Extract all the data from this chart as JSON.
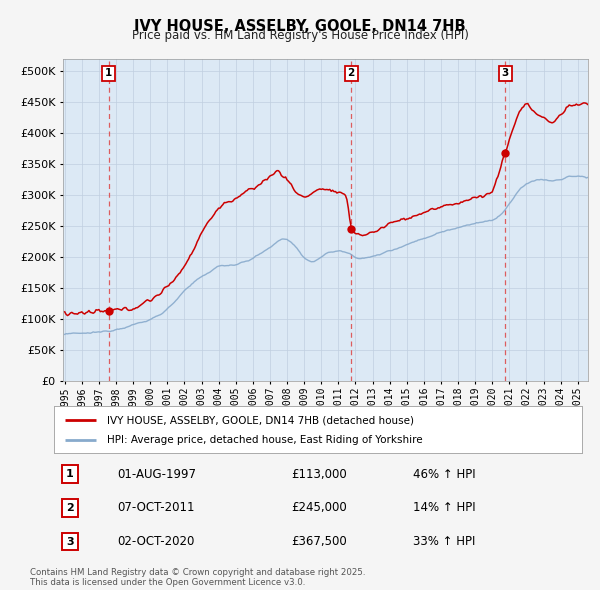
{
  "title": "IVY HOUSE, ASSELBY, GOOLE, DN14 7HB",
  "subtitle": "Price paid vs. HM Land Registry's House Price Index (HPI)",
  "red_label": "IVY HOUSE, ASSELBY, GOOLE, DN14 7HB (detached house)",
  "blue_label": "HPI: Average price, detached house, East Riding of Yorkshire",
  "sale_info": [
    {
      "num": "1",
      "date": "01-AUG-1997",
      "price": "£113,000",
      "hpi": "46% ↑ HPI"
    },
    {
      "num": "2",
      "date": "07-OCT-2011",
      "price": "£245,000",
      "hpi": "14% ↑ HPI"
    },
    {
      "num": "3",
      "date": "02-OCT-2020",
      "price": "£367,500",
      "hpi": "33% ↑ HPI"
    }
  ],
  "sale_years": [
    1997.583,
    2011.75,
    2020.75
  ],
  "sale_prices": [
    113000,
    245000,
    367500
  ],
  "footer": "Contains HM Land Registry data © Crown copyright and database right 2025.\nThis data is licensed under the Open Government Licence v3.0.",
  "bg_color": "#f5f5f5",
  "plot_bg_color": "#dce9f5",
  "red_color": "#cc0000",
  "blue_color": "#88aacc",
  "dashed_color": "#dd4444",
  "ylim": [
    0,
    520000
  ],
  "yticks": [
    0,
    50000,
    100000,
    150000,
    200000,
    250000,
    300000,
    350000,
    400000,
    450000,
    500000
  ],
  "year_start": 1995,
  "year_end": 2025.5
}
